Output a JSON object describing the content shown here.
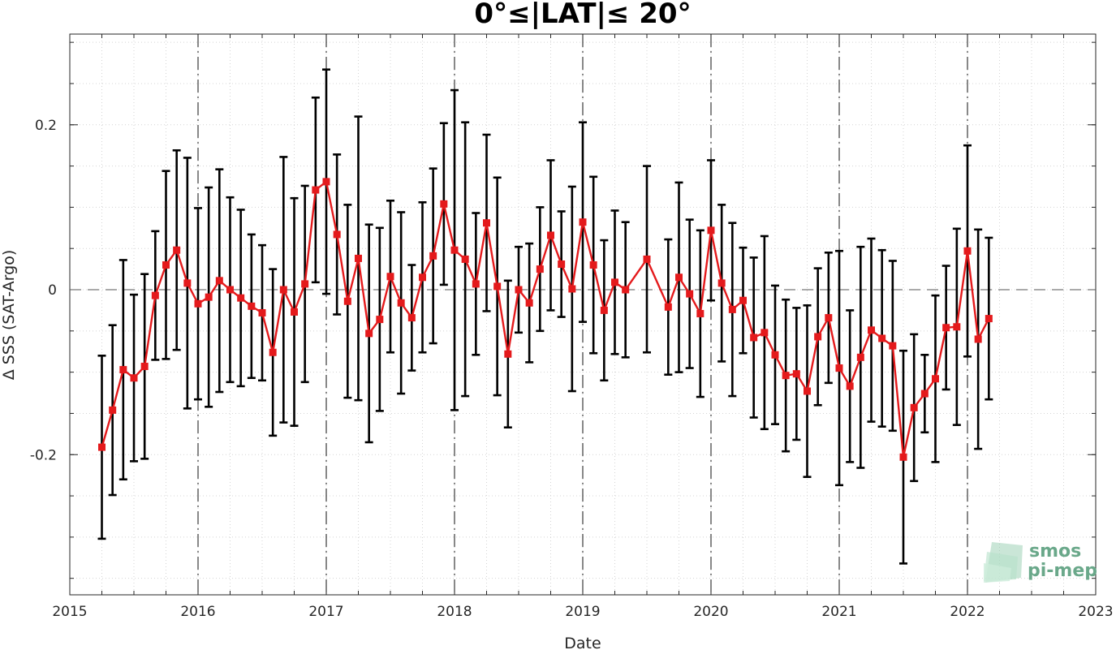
{
  "chart_data": {
    "type": "line",
    "title": "0°≤|LAT|≤ 20°",
    "xlabel": "Date",
    "ylabel": "Δ SSS (SAT-Argo)",
    "xlim": [
      2015,
      2023
    ],
    "ylim": [
      -0.37,
      0.31
    ],
    "x_ticks": [
      "2015",
      "2016",
      "2017",
      "2018",
      "2019",
      "2020",
      "2021",
      "2022",
      "2023"
    ],
    "y_ticks": [
      "0.2",
      "0",
      "-0.2"
    ],
    "y_tick_values": [
      0.2,
      0,
      -0.2
    ],
    "grid": "minor dotted",
    "reference_line": 0,
    "year_separators": [
      2016,
      2017,
      2018,
      2019,
      2020,
      2021,
      2022
    ],
    "series": [
      {
        "color": "#e41a1c",
        "errorbar_color": "#000000",
        "marker": "square",
        "points": [
          {
            "x": "2015-04",
            "y": -0.191,
            "err": 0.111
          },
          {
            "x": "2015-05",
            "y": -0.146,
            "err": 0.103
          },
          {
            "x": "2015-06",
            "y": -0.097,
            "err": 0.133
          },
          {
            "x": "2015-07",
            "y": -0.107,
            "err": 0.101
          },
          {
            "x": "2015-08",
            "y": -0.093,
            "err": 0.112
          },
          {
            "x": "2015-09",
            "y": -0.007,
            "err": 0.078
          },
          {
            "x": "2015-10",
            "y": 0.03,
            "err": 0.114
          },
          {
            "x": "2015-11",
            "y": 0.048,
            "err": 0.121
          },
          {
            "x": "2015-12",
            "y": 0.008,
            "err": 0.152
          },
          {
            "x": "2016-01",
            "y": -0.017,
            "err": 0.116
          },
          {
            "x": "2016-02",
            "y": -0.009,
            "err": 0.133
          },
          {
            "x": "2016-03",
            "y": 0.011,
            "err": 0.135
          },
          {
            "x": "2016-04",
            "y": 0.0,
            "err": 0.112
          },
          {
            "x": "2016-05",
            "y": -0.01,
            "err": 0.107
          },
          {
            "x": "2016-06",
            "y": -0.02,
            "err": 0.087
          },
          {
            "x": "2016-07",
            "y": -0.028,
            "err": 0.082
          },
          {
            "x": "2016-08",
            "y": -0.076,
            "err": 0.101
          },
          {
            "x": "2016-09",
            "y": 0.0,
            "err": 0.161
          },
          {
            "x": "2016-10",
            "y": -0.027,
            "err": 0.138
          },
          {
            "x": "2016-11",
            "y": 0.007,
            "err": 0.119
          },
          {
            "x": "2016-12",
            "y": 0.121,
            "err": 0.112
          },
          {
            "x": "2017-01",
            "y": 0.131,
            "err": 0.136
          },
          {
            "x": "2017-02",
            "y": 0.067,
            "err": 0.097
          },
          {
            "x": "2017-03",
            "y": -0.014,
            "err": 0.117
          },
          {
            "x": "2017-04",
            "y": 0.038,
            "err": 0.172
          },
          {
            "x": "2017-05",
            "y": -0.053,
            "err": 0.132
          },
          {
            "x": "2017-06",
            "y": -0.036,
            "err": 0.111
          },
          {
            "x": "2017-07",
            "y": 0.016,
            "err": 0.092
          },
          {
            "x": "2017-08",
            "y": -0.016,
            "err": 0.11
          },
          {
            "x": "2017-09",
            "y": -0.034,
            "err": 0.064
          },
          {
            "x": "2017-10",
            "y": 0.015,
            "err": 0.091
          },
          {
            "x": "2017-11",
            "y": 0.041,
            "err": 0.106
          },
          {
            "x": "2017-12",
            "y": 0.104,
            "err": 0.098
          },
          {
            "x": "2018-01",
            "y": 0.048,
            "err": 0.194
          },
          {
            "x": "2018-02",
            "y": 0.037,
            "err": 0.166
          },
          {
            "x": "2018-03",
            "y": 0.007,
            "err": 0.086
          },
          {
            "x": "2018-04",
            "y": 0.081,
            "err": 0.107
          },
          {
            "x": "2018-05",
            "y": 0.004,
            "err": 0.132
          },
          {
            "x": "2018-06",
            "y": -0.078,
            "err": 0.089
          },
          {
            "x": "2018-07",
            "y": 0.0,
            "err": 0.052
          },
          {
            "x": "2018-08",
            "y": -0.016,
            "err": 0.072
          },
          {
            "x": "2018-09",
            "y": 0.025,
            "err": 0.075
          },
          {
            "x": "2018-10",
            "y": 0.066,
            "err": 0.091
          },
          {
            "x": "2018-11",
            "y": 0.031,
            "err": 0.064
          },
          {
            "x": "2018-12",
            "y": 0.001,
            "err": 0.124
          },
          {
            "x": "2019-01",
            "y": 0.082,
            "err": 0.121
          },
          {
            "x": "2019-02",
            "y": 0.03,
            "err": 0.107
          },
          {
            "x": "2019-03",
            "y": -0.025,
            "err": 0.085
          },
          {
            "x": "2019-04",
            "y": 0.009,
            "err": 0.087
          },
          {
            "x": "2019-05",
            "y": 0.0,
            "err": 0.082
          },
          {
            "x": "2019-07",
            "y": 0.037,
            "err": 0.113
          },
          {
            "x": "2019-09",
            "y": -0.021,
            "err": 0.082
          },
          {
            "x": "2019-10",
            "y": 0.015,
            "err": 0.115
          },
          {
            "x": "2019-11",
            "y": -0.005,
            "err": 0.09
          },
          {
            "x": "2019-12",
            "y": -0.029,
            "err": 0.101
          },
          {
            "x": "2020-01",
            "y": 0.072,
            "err": 0.085
          },
          {
            "x": "2020-02",
            "y": 0.008,
            "err": 0.095
          },
          {
            "x": "2020-03",
            "y": -0.024,
            "err": 0.105
          },
          {
            "x": "2020-04",
            "y": -0.013,
            "err": 0.064
          },
          {
            "x": "2020-05",
            "y": -0.058,
            "err": 0.097
          },
          {
            "x": "2020-06",
            "y": -0.052,
            "err": 0.117
          },
          {
            "x": "2020-07",
            "y": -0.079,
            "err": 0.084
          },
          {
            "x": "2020-08",
            "y": -0.104,
            "err": 0.092
          },
          {
            "x": "2020-09",
            "y": -0.102,
            "err": 0.08
          },
          {
            "x": "2020-10",
            "y": -0.123,
            "err": 0.104
          },
          {
            "x": "2020-11",
            "y": -0.057,
            "err": 0.083
          },
          {
            "x": "2020-12",
            "y": -0.034,
            "err": 0.079
          },
          {
            "x": "2021-01",
            "y": -0.095,
            "err": 0.142
          },
          {
            "x": "2021-02",
            "y": -0.117,
            "err": 0.092
          },
          {
            "x": "2021-03",
            "y": -0.082,
            "err": 0.134
          },
          {
            "x": "2021-04",
            "y": -0.049,
            "err": 0.111
          },
          {
            "x": "2021-05",
            "y": -0.059,
            "err": 0.107
          },
          {
            "x": "2021-06",
            "y": -0.068,
            "err": 0.103
          },
          {
            "x": "2021-07",
            "y": -0.203,
            "err": 0.129
          },
          {
            "x": "2021-08",
            "y": -0.143,
            "err": 0.089
          },
          {
            "x": "2021-09",
            "y": -0.126,
            "err": 0.047
          },
          {
            "x": "2021-10",
            "y": -0.108,
            "err": 0.101
          },
          {
            "x": "2021-11",
            "y": -0.046,
            "err": 0.075
          },
          {
            "x": "2021-12",
            "y": -0.045,
            "err": 0.119
          },
          {
            "x": "2022-01",
            "y": 0.047,
            "err": 0.128
          },
          {
            "x": "2022-02",
            "y": -0.06,
            "err": 0.133
          },
          {
            "x": "2022-03",
            "y": -0.035,
            "err": 0.098
          }
        ]
      }
    ]
  },
  "logo": {
    "line1": "smos",
    "line2": "pi-mep",
    "text_color": "#6aa88a",
    "mark_color": "#8ecbaa"
  }
}
